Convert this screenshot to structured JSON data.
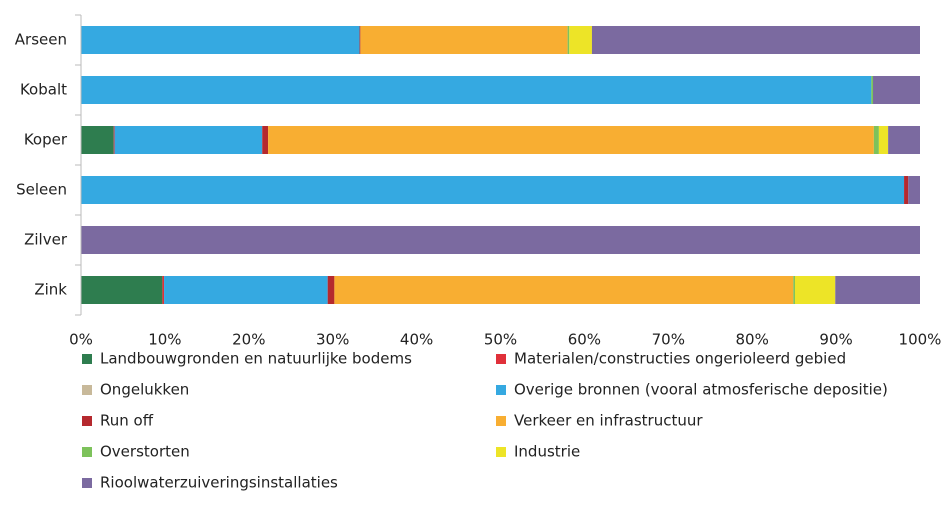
{
  "chart_data": {
    "type": "stacked-bar-horizontal",
    "categories": [
      "Arseen",
      "Kobalt",
      "Koper",
      "Seleen",
      "Zilver",
      "Zink"
    ],
    "xlim": [
      0,
      100
    ],
    "xticks": [
      {
        "value": 0,
        "label": "0%"
      },
      {
        "value": 10,
        "label": "10%"
      },
      {
        "value": 20,
        "label": "20%"
      },
      {
        "value": 30,
        "label": "30%"
      },
      {
        "value": 40,
        "label": "40%"
      },
      {
        "value": 50,
        "label": "50%"
      },
      {
        "value": 60,
        "label": "60%"
      },
      {
        "value": 70,
        "label": "70%"
      },
      {
        "value": 80,
        "label": "80%"
      },
      {
        "value": 90,
        "label": "90%"
      },
      {
        "value": 100,
        "label": "100%"
      }
    ],
    "series": [
      {
        "name": "Landbouwgronden en natuurlijke bodems",
        "color": "#2e7d4f",
        "values": [
          0,
          0,
          3.9,
          0,
          0,
          9.7
        ]
      },
      {
        "name": "Materialen/constructies ongerioleerd gebied",
        "color": "#e0303a",
        "values": [
          0,
          0,
          0.1,
          0,
          0,
          0.2
        ]
      },
      {
        "name": "Ongelukken",
        "color": "#c8b99a",
        "values": [
          0,
          0,
          0,
          0,
          0,
          0
        ]
      },
      {
        "name": "Overige bronnen (vooral atmosferische depositie)",
        "color": "#35a9e1",
        "values": [
          33.2,
          94.2,
          17.6,
          98.1,
          0,
          19.5
        ]
      },
      {
        "name": "Run off",
        "color": "#b5292e",
        "values": [
          0.1,
          0,
          0.7,
          0.5,
          0,
          0.8
        ]
      },
      {
        "name": "Verkeer en infrastructuur",
        "color": "#f8ae32",
        "values": [
          24.7,
          0,
          72.2,
          0,
          0,
          54.7
        ]
      },
      {
        "name": "Overstorten",
        "color": "#7dc25b",
        "values": [
          0.2,
          0.2,
          0.6,
          0,
          0,
          0.2
        ]
      },
      {
        "name": "Industrie",
        "color": "#ede427",
        "values": [
          2.7,
          0,
          1.1,
          0,
          0,
          4.8
        ]
      },
      {
        "name": "Rioolwaterzuiveringsinstallaties",
        "color": "#7b6aa0",
        "values": [
          39.1,
          5.6,
          3.8,
          1.4,
          100,
          10.1
        ]
      }
    ]
  }
}
